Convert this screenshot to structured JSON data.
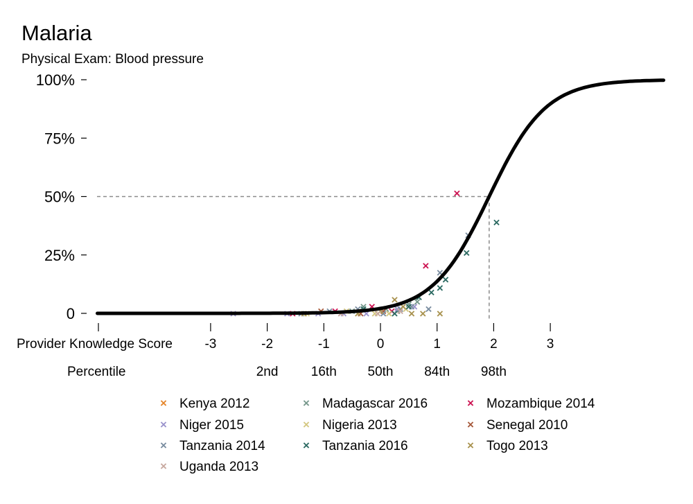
{
  "chart_data": {
    "type": "scatter",
    "title": "Malaria",
    "subtitle": "Physical Exam: Blood pressure",
    "xlabel": "Provider Knowledge Score",
    "x_ticks": [
      "-3",
      "-2",
      "-1",
      "0",
      "1",
      "2",
      "3"
    ],
    "y_ticks": [
      "0",
      "25%",
      "50%",
      "75%",
      "100%"
    ],
    "percentile_label": "Percentile",
    "percentile_ticks": [
      {
        "x": -2,
        "label": "2nd"
      },
      {
        "x": -1,
        "label": "16th"
      },
      {
        "x": 0,
        "label": "50th"
      },
      {
        "x": 1,
        "label": "84th"
      },
      {
        "x": 2,
        "label": "98th"
      }
    ],
    "xlim": [
      -5,
      5
    ],
    "ylim": [
      0,
      1
    ],
    "grid": false,
    "legend_position": "bottom",
    "curve": {
      "type": "logistic",
      "midpoint": 1.92,
      "slope": 2.0,
      "color": "#000000"
    },
    "reference_lines": {
      "y": 0.5,
      "x": 1.92
    },
    "marker_glyph": "×",
    "series": [
      {
        "name": "Kenya 2012",
        "color": "#e5872c",
        "points": []
      },
      {
        "name": "Madagascar 2016",
        "color": "#77988c",
        "points": [
          [
            -0.5,
            0.01
          ],
          [
            -0.3,
            0.03
          ],
          [
            0.0,
            0.01
          ],
          [
            0.1,
            0.02
          ],
          [
            0.3,
            0.01
          ],
          [
            0.5,
            0.04
          ],
          [
            0.65,
            0.05
          ]
        ]
      },
      {
        "name": "Mozambique 2014",
        "color": "#cc1452",
        "points": [
          [
            -1.55,
            0.0
          ],
          [
            -0.8,
            0.01
          ],
          [
            -0.15,
            0.03
          ],
          [
            0.2,
            0.01
          ],
          [
            0.8,
            0.205
          ],
          [
            1.35,
            0.515
          ]
        ]
      },
      {
        "name": "Niger 2015",
        "color": "#9b94cc",
        "points": [
          [
            -2.6,
            0.0
          ],
          [
            -1.65,
            0.0
          ],
          [
            -1.1,
            0.0
          ],
          [
            -0.65,
            0.0
          ],
          [
            -0.25,
            0.0
          ],
          [
            0.3,
            0.02
          ],
          [
            0.6,
            0.03
          ]
        ]
      },
      {
        "name": "Nigeria 2013",
        "color": "#d4c882",
        "points": [
          [
            -1.3,
            0.0
          ],
          [
            -0.6,
            0.01
          ],
          [
            -0.1,
            0.0
          ],
          [
            0.15,
            0.0
          ],
          [
            0.45,
            0.02
          ]
        ]
      },
      {
        "name": "Senegal 2010",
        "color": "#a65a3c",
        "points": [
          [
            -1.05,
            0.01
          ],
          [
            -0.35,
            0.0
          ],
          [
            0.05,
            0.01
          ]
        ]
      },
      {
        "name": "Tanzania 2014",
        "color": "#7a8da0",
        "points": [
          [
            -1.4,
            0.0
          ],
          [
            -0.9,
            0.01
          ],
          [
            -0.4,
            0.02
          ],
          [
            0.05,
            0.0
          ],
          [
            0.35,
            0.02
          ],
          [
            0.55,
            0.03
          ],
          [
            0.85,
            0.02
          ],
          [
            1.05,
            0.175
          ],
          [
            1.55,
            0.335
          ]
        ]
      },
      {
        "name": "Tanzania 2016",
        "color": "#2d6b63",
        "points": [
          [
            -0.3,
            0.02
          ],
          [
            0.25,
            0.0
          ],
          [
            0.5,
            0.03
          ],
          [
            0.68,
            0.07
          ],
          [
            0.9,
            0.09
          ],
          [
            1.05,
            0.11
          ],
          [
            1.15,
            0.145
          ],
          [
            1.52,
            0.26
          ],
          [
            2.05,
            0.39
          ]
        ]
      },
      {
        "name": "Togo 2013",
        "color": "#a99350",
        "points": [
          [
            -1.35,
            0.0
          ],
          [
            -0.4,
            0.0
          ],
          [
            0.0,
            0.01
          ],
          [
            0.25,
            0.06
          ],
          [
            0.4,
            0.03
          ],
          [
            0.55,
            0.0
          ],
          [
            0.75,
            0.0
          ],
          [
            1.05,
            0.0
          ]
        ]
      },
      {
        "name": "Uganda 2013",
        "color": "#c8a9a0",
        "points": [
          [
            -0.7,
            0.0
          ],
          [
            -0.05,
            0.0
          ],
          [
            0.35,
            0.01
          ]
        ]
      }
    ]
  }
}
